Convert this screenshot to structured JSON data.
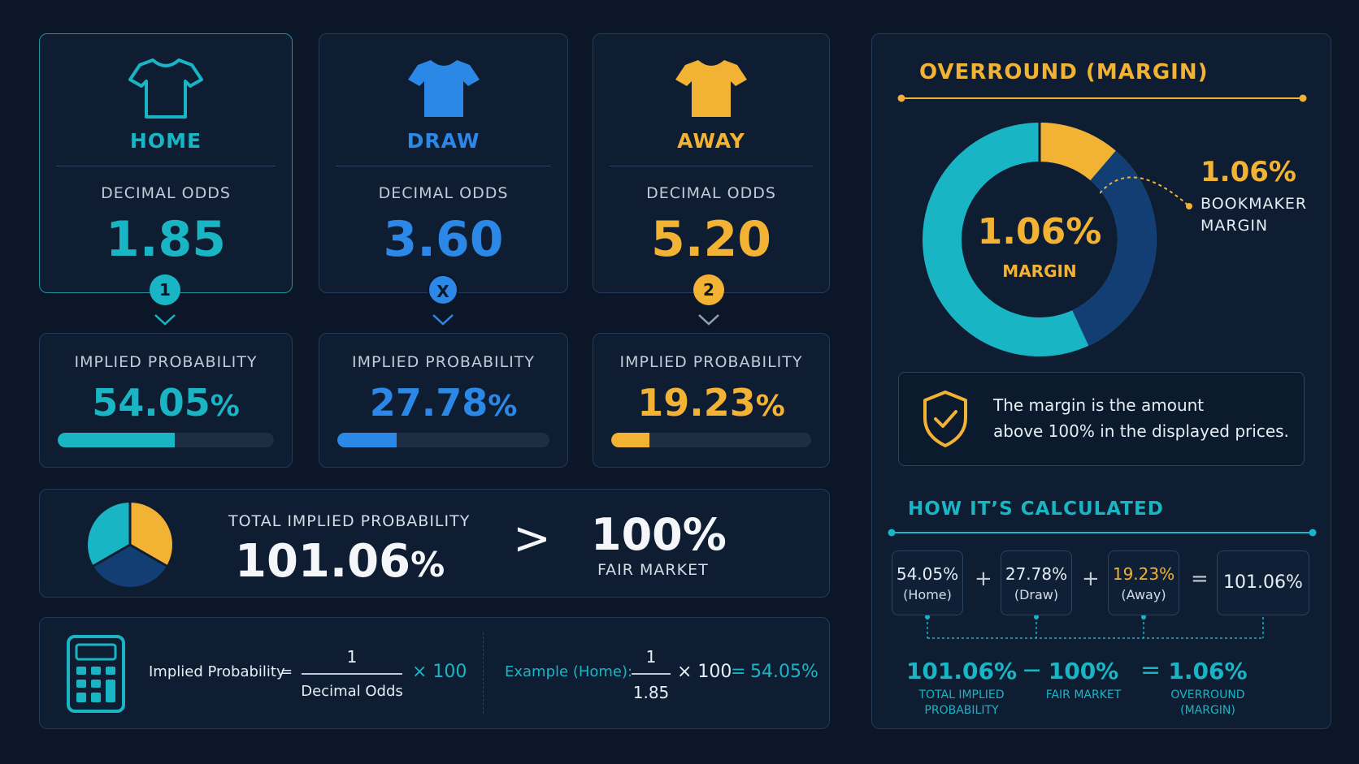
{
  "outcomes": [
    {
      "name": "HOME",
      "odds_label": "DECIMAL ODDS",
      "odds": "1.85",
      "badge": "1",
      "color": "#1ab5c4",
      "prob_label": "IMPLIED PROBABILITY",
      "prob": "54.05",
      "pct": "%",
      "prob_fraction": 0.5405
    },
    {
      "name": "DRAW",
      "odds_label": "DECIMAL ODDS",
      "odds": "3.60",
      "badge": "X",
      "color": "#2b88e6",
      "prob_label": "IMPLIED PROBABILITY",
      "prob": "27.78",
      "pct": "%",
      "prob_fraction": 0.2778
    },
    {
      "name": "AWAY",
      "odds_label": "DECIMAL ODDS",
      "odds": "5.20",
      "badge": "2",
      "color": "#f2b233",
      "prob_label": "IMPLIED PROBABILITY",
      "prob": "19.23",
      "pct": "%",
      "prob_fraction": 0.1923
    }
  ],
  "total": {
    "label": "TOTAL IMPLIED PROBABILITY",
    "value": "101.06",
    "pct": "%",
    "compare": ">",
    "fair_value": "100%",
    "fair_label": "FAIR MARKET"
  },
  "formula": {
    "lhs": "Implied Probability",
    "eq": "=",
    "numerator": "1",
    "denominator": "Decimal Odds",
    "times": "× 100",
    "example_label": "Example (Home):",
    "ex_numerator": "1",
    "ex_denominator": "1.85",
    "ex_times": "× 100",
    "ex_eq": "=",
    "ex_result": "54.05%"
  },
  "overround": {
    "title": "OVERROUND (MARGIN)",
    "center_value": "1.06%",
    "center_label": "MARGIN",
    "callout_value": "1.06%",
    "callout_line1": "BOOKMAKER",
    "callout_line2": "MARGIN",
    "info_line1": "The margin is the amount",
    "info_line2": "above 100% in the displayed prices."
  },
  "calc": {
    "title": "HOW IT’S CALCULATED",
    "items": [
      {
        "value": "54.05%",
        "sub": "(Home)"
      },
      {
        "value": "27.78%",
        "sub": "(Draw)"
      },
      {
        "value": "19.23%",
        "sub": "(Away)"
      }
    ],
    "plus": "+",
    "equals": "=",
    "total": "101.06%",
    "bottom": {
      "a_value": "101.06%",
      "a_label1": "TOTAL IMPLIED",
      "a_label2": "PROBABILITY",
      "minus": "−",
      "b_value": "100%",
      "b_label": "FAIR MARKET",
      "eq": "=",
      "c_value": "1.06%",
      "c_label1": "OVERROUND",
      "c_label2": "(MARGIN)"
    }
  },
  "colors": {
    "home": "#1ab5c4",
    "draw": "#2b88e6",
    "away": "#f2b233",
    "navy": "#123e74"
  },
  "icons": [
    "tshirt-icon",
    "shield-check-icon",
    "calculator-icon",
    "pie-chart-icon",
    "donut-chart-icon"
  ]
}
